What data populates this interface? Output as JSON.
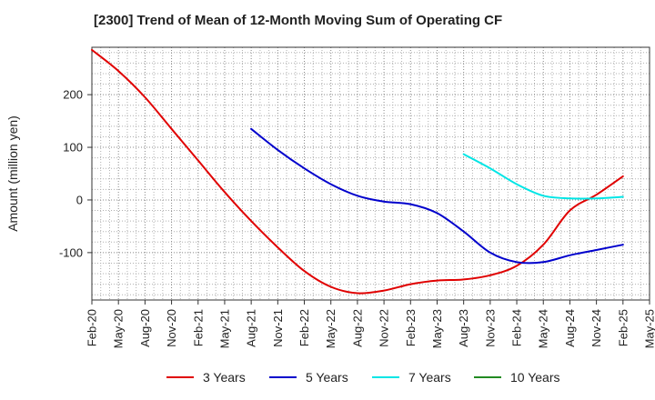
{
  "chart_data": {
    "type": "line",
    "title": "[2300]  Trend of Mean of 12-Month Moving Sum of Operating CF",
    "xlabel": "",
    "ylabel": "Amount (million yen)",
    "ylim": [
      -190,
      290
    ],
    "yticks": [
      -100,
      0,
      100,
      200
    ],
    "grid": true,
    "legend_position": "bottom",
    "categories": [
      "Feb-20",
      "May-20",
      "Aug-20",
      "Nov-20",
      "Feb-21",
      "May-21",
      "Aug-21",
      "Nov-21",
      "Feb-22",
      "May-22",
      "Aug-22",
      "Nov-22",
      "Feb-23",
      "May-23",
      "Aug-23",
      "Nov-23",
      "Feb-24",
      "May-24",
      "Aug-24",
      "Nov-24",
      "Feb-25",
      "May-25"
    ],
    "series": [
      {
        "name": "3 Years",
        "color": "#e00000",
        "values": [
          285,
          245,
          195,
          135,
          75,
          15,
          -40,
          -90,
          -135,
          -165,
          -177,
          -172,
          -160,
          -153,
          -151,
          -143,
          -125,
          -85,
          -20,
          10,
          45,
          null
        ]
      },
      {
        "name": "5 Years",
        "color": "#0000cc",
        "values": [
          null,
          null,
          null,
          null,
          null,
          null,
          135,
          95,
          60,
          30,
          8,
          -3,
          -8,
          -25,
          -60,
          -100,
          -118,
          -118,
          -105,
          -95,
          -85,
          null
        ]
      },
      {
        "name": "7 Years",
        "color": "#00e5e5",
        "values": [
          null,
          null,
          null,
          null,
          null,
          null,
          null,
          null,
          null,
          null,
          null,
          null,
          null,
          null,
          87,
          60,
          30,
          8,
          3,
          3,
          6,
          null
        ]
      },
      {
        "name": "10 Years",
        "color": "#228b22",
        "values": [
          null,
          null,
          null,
          null,
          null,
          null,
          null,
          null,
          null,
          null,
          null,
          null,
          null,
          null,
          null,
          null,
          null,
          null,
          null,
          null,
          null,
          null
        ]
      }
    ]
  }
}
